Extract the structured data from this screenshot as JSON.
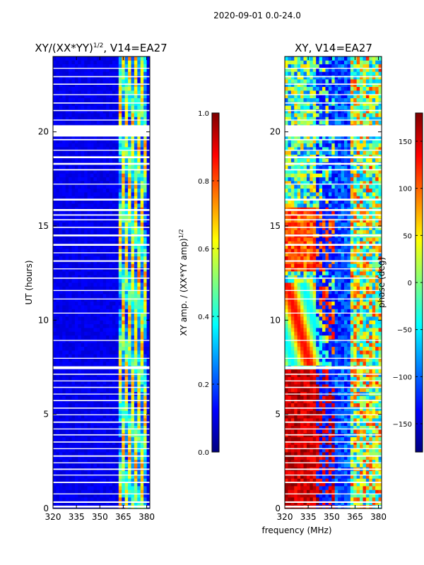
{
  "figure_title": "2020-09-01 0.0-24.0",
  "chart_data": [
    {
      "type": "heatmap",
      "title_main": "XY/(XX*YY)",
      "title_sup": "1/2",
      "title_rest": ", V14=EA27",
      "xlabel": "",
      "ylabel": "UT (hours)",
      "xlim": [
        320,
        382
      ],
      "ylim": [
        0,
        24
      ],
      "xticks": [
        320,
        335,
        350,
        365,
        380
      ],
      "yticks": [
        0,
        5,
        10,
        15,
        20
      ],
      "colormap": "jet",
      "colorbar": {
        "label_main": "XY amp. / (XX*YY amp)",
        "label_sup": "1/2",
        "range": [
          0.0,
          1.0
        ],
        "ticks": [
          "0.0",
          "0.2",
          "0.4",
          "0.6",
          "0.8",
          "1.0"
        ],
        "tick_values": [
          0.0,
          0.2,
          0.4,
          0.6,
          0.8,
          1.0
        ]
      }
    },
    {
      "type": "heatmap",
      "title": "XY, V14=EA27",
      "xlabel": "frequency (MHz)",
      "ylabel": "",
      "xlim": [
        320,
        382
      ],
      "ylim": [
        0,
        24
      ],
      "xticks": [
        320,
        335,
        350,
        365,
        380
      ],
      "yticks": [
        0,
        5,
        10,
        15,
        20
      ],
      "colormap": "jet",
      "colorbar": {
        "label": "phase (deg)",
        "range": [
          -180,
          180
        ],
        "ticks": [
          "−150",
          "−100",
          "−50",
          "0",
          "50",
          "100",
          "150"
        ],
        "tick_values": [
          -150,
          -100,
          -50,
          0,
          50,
          100,
          150
        ]
      }
    }
  ],
  "blank_time_bands_hours": [
    [
      0.05,
      0.15
    ],
    [
      0.3,
      0.38
    ],
    [
      0.75,
      0.8
    ],
    [
      1.35,
      1.42
    ],
    [
      1.75,
      1.8
    ],
    [
      2.05,
      2.12
    ],
    [
      2.4,
      2.45
    ],
    [
      2.75,
      2.82
    ],
    [
      3.15,
      3.2
    ],
    [
      3.5,
      3.56
    ],
    [
      3.88,
      3.94
    ],
    [
      4.2,
      4.25
    ],
    [
      4.55,
      4.62
    ],
    [
      4.95,
      5.0
    ],
    [
      5.3,
      5.36
    ],
    [
      5.7,
      5.76
    ],
    [
      6.05,
      6.1
    ],
    [
      6.4,
      6.46
    ],
    [
      6.75,
      6.8
    ],
    [
      7.1,
      7.16
    ],
    [
      7.4,
      7.55
    ],
    [
      7.95,
      8.0
    ],
    [
      8.9,
      8.95
    ],
    [
      10.35,
      10.4
    ],
    [
      11.1,
      11.15
    ],
    [
      11.55,
      11.6
    ],
    [
      12.2,
      12.26
    ],
    [
      12.7,
      12.75
    ],
    [
      13.1,
      13.18
    ],
    [
      13.55,
      13.6
    ],
    [
      13.95,
      14.05
    ],
    [
      14.45,
      14.55
    ],
    [
      14.9,
      14.96
    ],
    [
      15.3,
      15.36
    ],
    [
      15.55,
      15.62
    ],
    [
      15.8,
      15.9
    ],
    [
      16.35,
      16.45
    ],
    [
      17.2,
      17.25
    ],
    [
      17.95,
      18.02
    ],
    [
      18.25,
      18.35
    ],
    [
      18.6,
      18.7
    ],
    [
      19.0,
      19.05
    ],
    [
      19.55,
      19.62
    ],
    [
      19.75,
      20.35
    ],
    [
      20.6,
      20.65
    ],
    [
      21.1,
      21.16
    ],
    [
      21.5,
      21.56
    ],
    [
      21.95,
      22.0
    ],
    [
      22.5,
      22.56
    ],
    [
      22.9,
      22.96
    ],
    [
      23.35,
      23.4
    ]
  ]
}
